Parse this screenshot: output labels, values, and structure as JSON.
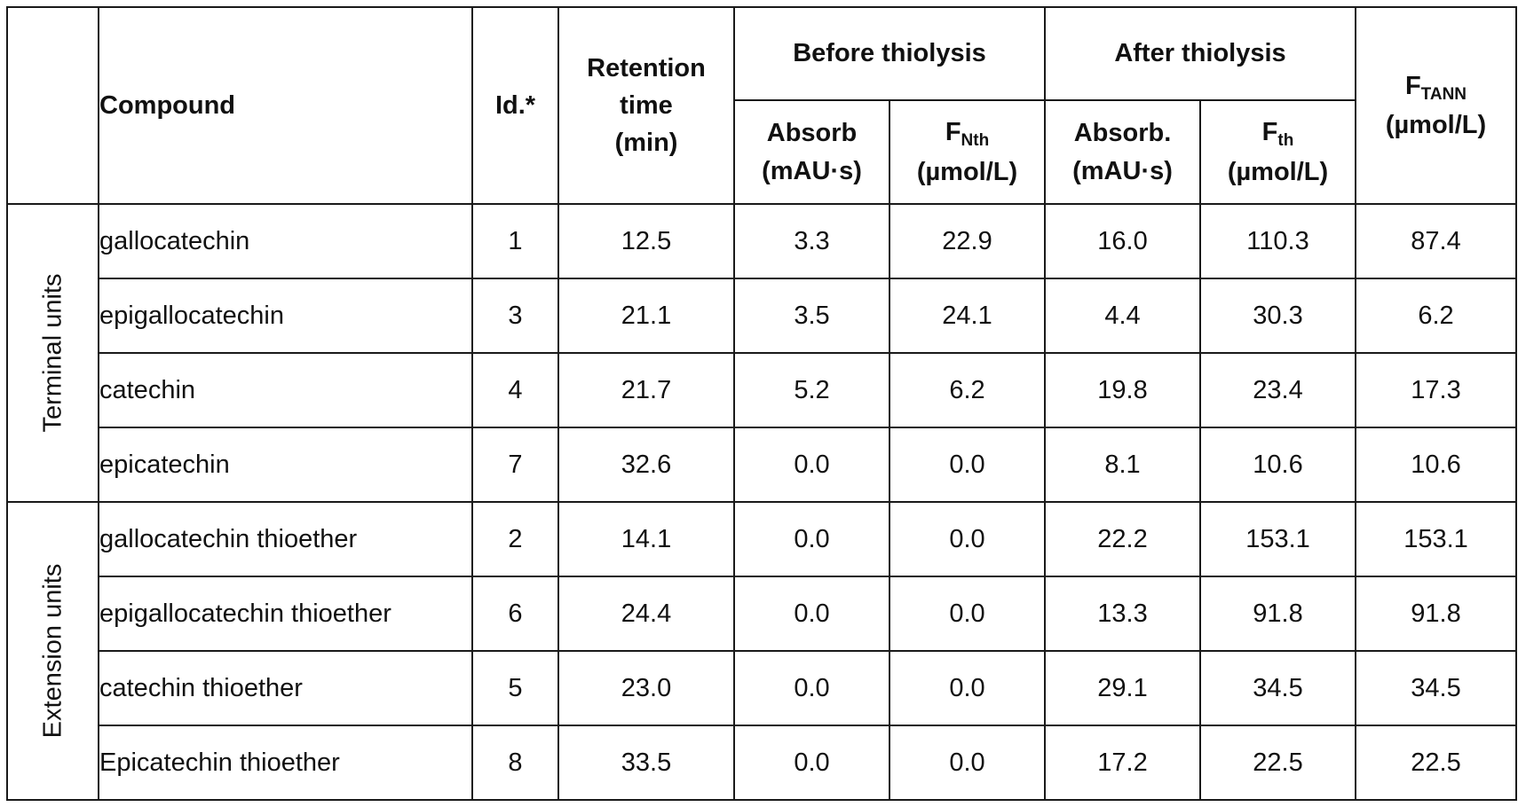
{
  "headers": {
    "compound": "Compound",
    "id": "Id.*",
    "retention_line1": "Retention",
    "retention_line2": "time",
    "retention_line3": "(min)",
    "before_group": "Before thiolysis",
    "after_group": "After thiolysis",
    "before_absorb_line1": "Absorb",
    "before_absorb_line2": "(mAU·s)",
    "fnth_main": "F",
    "fnth_sub": "Nth",
    "fnth_unit": "(µmol/L)",
    "after_absorb_line1": "Absorb.",
    "after_absorb_line2": "(mAU·s)",
    "fth_main": "F",
    "fth_sub": "th",
    "fth_unit": "(µmol/L)",
    "ftann_main": "F",
    "ftann_sub": "TANN",
    "ftann_unit": "(µmol/L)"
  },
  "groups": {
    "terminal": "Terminal units",
    "extension": "Extension units"
  },
  "rows": [
    {
      "compound": "gallocatechin",
      "id": "1",
      "rt": "12.5",
      "abs_before": "3.3",
      "fnth": "22.9",
      "abs_after": "16.0",
      "fth": "110.3",
      "ftann": "87.4"
    },
    {
      "compound": "epigallocatechin",
      "id": "3",
      "rt": "21.1",
      "abs_before": "3.5",
      "fnth": "24.1",
      "abs_after": "4.4",
      "fth": "30.3",
      "ftann": "6.2"
    },
    {
      "compound": "catechin",
      "id": "4",
      "rt": "21.7",
      "abs_before": "5.2",
      "fnth": "6.2",
      "abs_after": "19.8",
      "fth": "23.4",
      "ftann": "17.3"
    },
    {
      "compound": "epicatechin",
      "id": "7",
      "rt": "32.6",
      "abs_before": "0.0",
      "fnth": "0.0",
      "abs_after": "8.1",
      "fth": "10.6",
      "ftann": "10.6"
    },
    {
      "compound": "gallocatechin thioether",
      "id": "2",
      "rt": "14.1",
      "abs_before": "0.0",
      "fnth": "0.0",
      "abs_after": "22.2",
      "fth": "153.1",
      "ftann": "153.1"
    },
    {
      "compound": "epigallocatechin thioether",
      "id": "6",
      "rt": "24.4",
      "abs_before": "0.0",
      "fnth": "0.0",
      "abs_after": "13.3",
      "fth": "91.8",
      "ftann": "91.8"
    },
    {
      "compound": "catechin thioether",
      "id": "5",
      "rt": "23.0",
      "abs_before": "0.0",
      "fnth": "0.0",
      "abs_after": "29.1",
      "fth": "34.5",
      "ftann": "34.5"
    },
    {
      "compound": "Epicatechin thioether",
      "id": "8",
      "rt": "33.5",
      "abs_before": "0.0",
      "fnth": "0.0",
      "abs_after": "17.2",
      "fth": "22.5",
      "ftann": "22.5"
    }
  ]
}
